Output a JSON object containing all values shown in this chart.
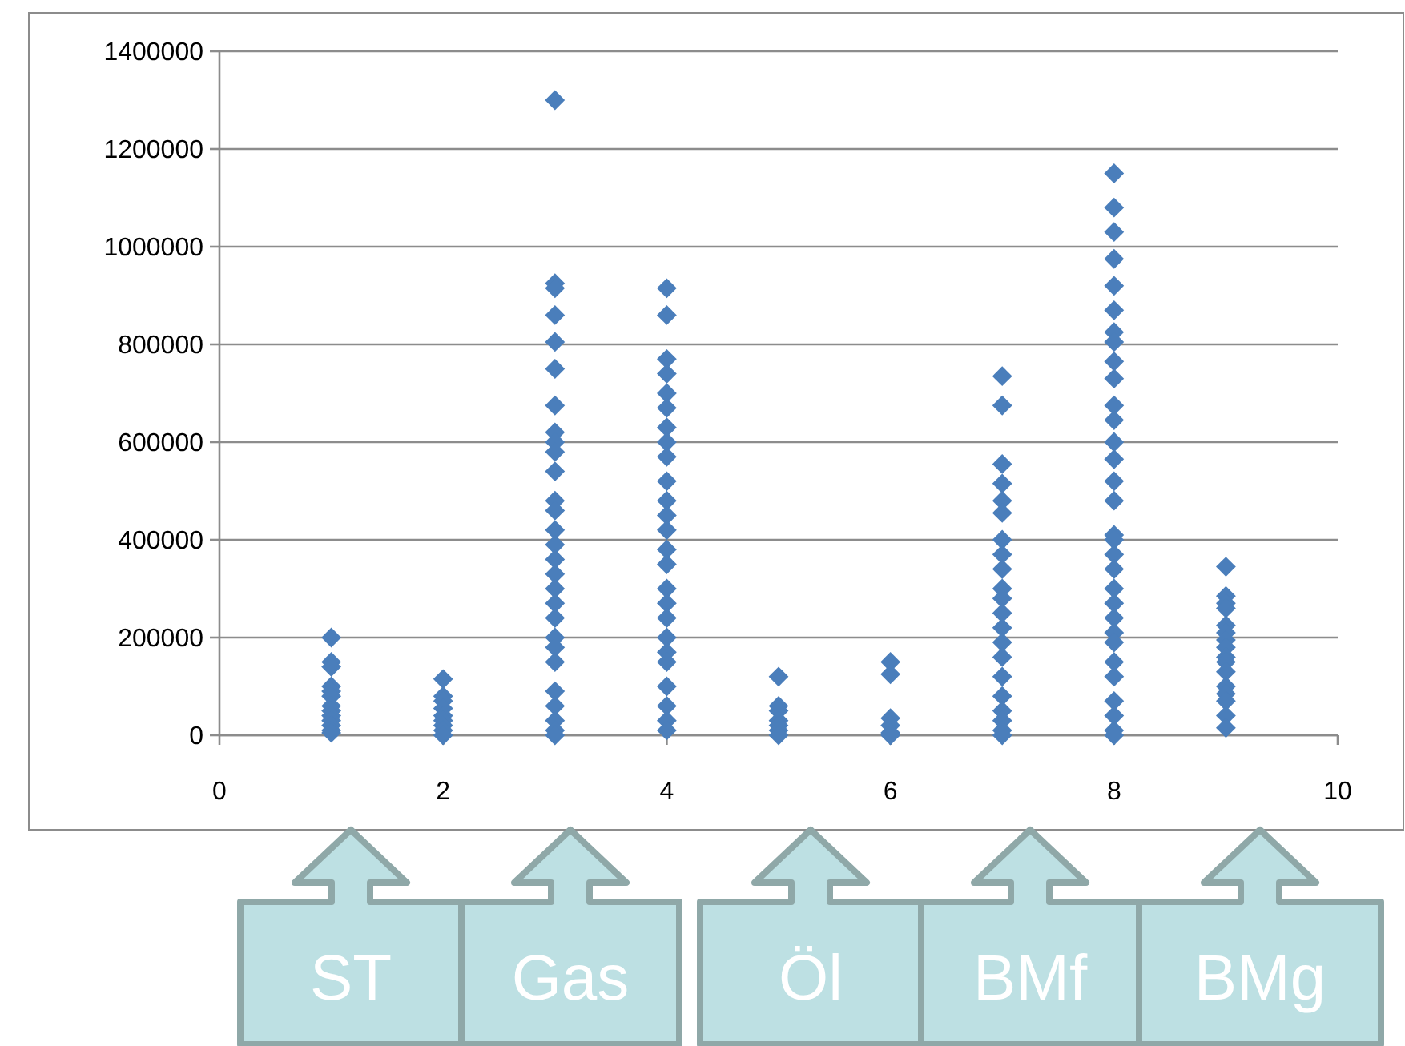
{
  "chart_data": {
    "type": "scatter",
    "marker": "diamond",
    "grid": "y",
    "xlim": [
      0,
      10
    ],
    "xticks": [
      0,
      2,
      4,
      6,
      8,
      10
    ],
    "ylim": [
      0,
      1400000
    ],
    "yticks": [
      0,
      200000,
      400000,
      600000,
      800000,
      1000000,
      1200000,
      1400000
    ],
    "x": [
      1,
      1,
      1,
      1,
      1,
      1,
      1,
      1,
      1,
      1,
      1,
      1,
      1,
      2,
      2,
      2,
      2,
      2,
      2,
      2,
      2,
      2,
      3,
      3,
      3,
      3,
      3,
      3,
      3,
      3,
      3,
      3,
      3,
      3,
      3,
      3,
      3,
      3,
      3,
      3,
      3,
      3,
      3,
      3,
      3,
      3,
      3,
      3,
      3,
      3,
      4,
      4,
      4,
      4,
      4,
      4,
      4,
      4,
      4,
      4,
      4,
      4,
      4,
      4,
      4,
      4,
      4,
      4,
      4,
      4,
      4,
      4,
      4,
      4,
      4,
      5,
      5,
      5,
      5,
      5,
      5,
      5,
      6,
      6,
      6,
      6,
      6,
      6,
      7,
      7,
      7,
      7,
      7,
      7,
      7,
      7,
      7,
      7,
      7,
      7,
      7,
      7,
      7,
      7,
      7,
      7,
      7,
      7,
      7,
      8,
      8,
      8,
      8,
      8,
      8,
      8,
      8,
      8,
      8,
      8,
      8,
      8,
      8,
      8,
      8,
      8,
      8,
      8,
      8,
      8,
      8,
      8,
      8,
      8,
      8,
      8,
      8,
      8,
      8,
      8,
      9,
      9,
      9,
      9,
      9,
      9,
      9,
      9,
      9,
      9,
      9,
      9,
      9,
      9,
      9,
      9
    ],
    "series": [
      {
        "color": "#4a7ebb",
        "values": [
          200000,
          150000,
          140000,
          100000,
          90000,
          80000,
          60000,
          50000,
          40000,
          30000,
          20000,
          10000,
          5000,
          115000,
          80000,
          70000,
          55000,
          40000,
          30000,
          20000,
          10000,
          0,
          1300000,
          925000,
          915000,
          860000,
          805000,
          750000,
          675000,
          620000,
          600000,
          580000,
          540000,
          480000,
          460000,
          420000,
          390000,
          360000,
          330000,
          300000,
          270000,
          240000,
          200000,
          180000,
          150000,
          90000,
          60000,
          30000,
          10000,
          0,
          915000,
          860000,
          770000,
          740000,
          700000,
          670000,
          630000,
          600000,
          570000,
          520000,
          480000,
          450000,
          420000,
          380000,
          350000,
          300000,
          270000,
          240000,
          200000,
          170000,
          150000,
          100000,
          60000,
          30000,
          10000,
          120000,
          60000,
          50000,
          30000,
          20000,
          10000,
          0,
          150000,
          125000,
          35000,
          20000,
          5000,
          0,
          735000,
          675000,
          555000,
          515000,
          480000,
          455000,
          400000,
          370000,
          340000,
          300000,
          280000,
          250000,
          220000,
          190000,
          160000,
          120000,
          80000,
          50000,
          30000,
          10000,
          0,
          1150000,
          1080000,
          1030000,
          975000,
          920000,
          870000,
          825000,
          805000,
          765000,
          730000,
          675000,
          645000,
          600000,
          565000,
          520000,
          480000,
          410000,
          400000,
          370000,
          340000,
          300000,
          270000,
          240000,
          210000,
          190000,
          150000,
          120000,
          70000,
          40000,
          10000,
          0,
          345000,
          285000,
          270000,
          260000,
          225000,
          210000,
          195000,
          180000,
          160000,
          150000,
          130000,
          100000,
          85000,
          70000,
          40000,
          15000
        ]
      }
    ],
    "annotations": [
      "ST",
      "Gas",
      "Öl",
      "BMf",
      "BMg"
    ]
  }
}
